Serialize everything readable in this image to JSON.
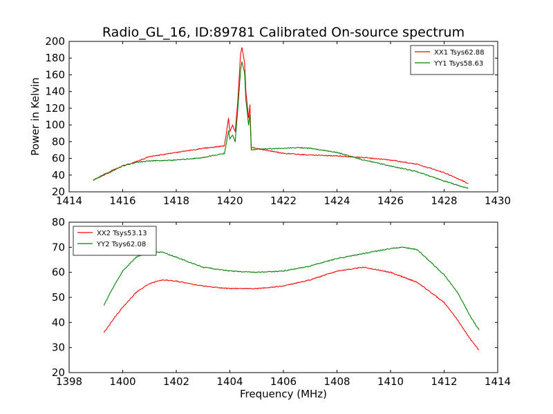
{
  "figure": {
    "title": "Radio_GL_16, ID:89781 Calibrated On-source spectrum",
    "xlabel": "Frequency (MHz)",
    "ylabel": "Power in Kelvin"
  },
  "chart_data": [
    {
      "type": "line",
      "xlim": [
        1414,
        1430
      ],
      "ylim": [
        20,
        200
      ],
      "xticks": [
        1414,
        1416,
        1418,
        1420,
        1422,
        1424,
        1426,
        1428,
        1430
      ],
      "yticks": [
        20,
        40,
        60,
        80,
        100,
        120,
        140,
        160,
        180,
        200
      ],
      "xlabel": "",
      "ylabel": "Power in Kelvin",
      "legend_position": "top-right",
      "grid": false,
      "series": [
        {
          "name": "XX1 Tsys62.88",
          "color": "#ff0000",
          "x": [
            1414.9,
            1415.5,
            1416,
            1416.5,
            1417,
            1418,
            1419,
            1419.8,
            1419.95,
            1420.0,
            1420.1,
            1420.2,
            1420.3,
            1420.4,
            1420.45,
            1420.55,
            1420.6,
            1420.7,
            1420.75,
            1420.8,
            1421.0,
            1422,
            1423,
            1424,
            1425,
            1426,
            1427,
            1428,
            1428.9
          ],
          "y": [
            34,
            43,
            51,
            56,
            62,
            67,
            72,
            75,
            108,
            92,
            100,
            92,
            130,
            185,
            193,
            175,
            140,
            108,
            124,
            73,
            72,
            66,
            64,
            63,
            61,
            58,
            53,
            43,
            30
          ]
        },
        {
          "name": "YY1 Tsys58.63",
          "color": "#008000",
          "x": [
            1414.9,
            1415.5,
            1416,
            1416.5,
            1417,
            1418,
            1419,
            1419.8,
            1419.95,
            1420.0,
            1420.1,
            1420.2,
            1420.3,
            1420.4,
            1420.45,
            1420.55,
            1420.6,
            1420.7,
            1420.75,
            1420.8,
            1421.0,
            1422,
            1422.5,
            1423,
            1424,
            1425,
            1426,
            1427,
            1428,
            1428.9
          ],
          "y": [
            34,
            44,
            51,
            55,
            57,
            58,
            61,
            66,
            93,
            83,
            88,
            80,
            120,
            165,
            176,
            162,
            130,
            100,
            112,
            70,
            71,
            72,
            73,
            72,
            67,
            58,
            51,
            44,
            33,
            24
          ]
        }
      ]
    },
    {
      "type": "line",
      "xlim": [
        1398,
        1414
      ],
      "ylim": [
        20,
        80
      ],
      "xticks": [
        1398,
        1400,
        1402,
        1404,
        1406,
        1408,
        1410,
        1412,
        1414
      ],
      "yticks": [
        20,
        30,
        40,
        50,
        60,
        70,
        80
      ],
      "xlabel": "Frequency (MHz)",
      "ylabel": "",
      "legend_position": "top-left",
      "grid": false,
      "series": [
        {
          "name": "XX2 Tsys53.13",
          "color": "#ff0000",
          "x": [
            1399.3,
            1399.7,
            1400,
            1400.5,
            1401,
            1401.5,
            1402,
            1403,
            1404,
            1405,
            1406,
            1407,
            1408,
            1409,
            1410,
            1411,
            1412,
            1412.5,
            1413,
            1413.3
          ],
          "y": [
            36,
            42,
            46,
            52,
            55.5,
            57,
            56.5,
            54.5,
            53.5,
            53.5,
            54.5,
            57,
            60.5,
            62,
            60,
            56,
            48,
            41,
            33,
            29
          ]
        },
        {
          "name": "YY2 Tsys62.08",
          "color": "#008000",
          "x": [
            1399.3,
            1399.7,
            1400,
            1400.5,
            1401,
            1401.5,
            1402,
            1403,
            1404,
            1405,
            1406,
            1407,
            1408,
            1409,
            1410,
            1410.5,
            1411,
            1412,
            1412.5,
            1413,
            1413.3
          ],
          "y": [
            47,
            55,
            60.5,
            66,
            68,
            68,
            66,
            62,
            60.5,
            60,
            60.5,
            62.5,
            65.5,
            67.5,
            69.5,
            70,
            69,
            59,
            52,
            42,
            37
          ]
        }
      ]
    }
  ]
}
